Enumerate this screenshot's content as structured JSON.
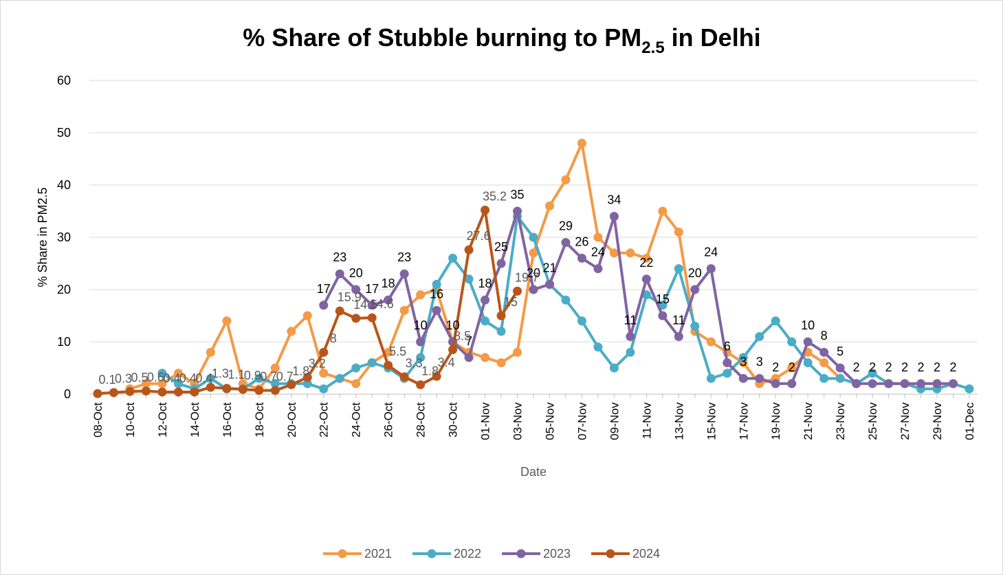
{
  "chart_data": {
    "type": "line",
    "title": {
      "text": "% Share of Stubble burning to PM",
      "subscript": "2.5",
      "suffix": " in Delhi"
    },
    "x_label": "Date",
    "y_label": "% Share in PM2.5",
    "categories": [
      "08-Oct",
      null,
      "10-Oct",
      null,
      "12-Oct",
      null,
      "14-Oct",
      null,
      "16-Oct",
      null,
      "18-Oct",
      null,
      "20-Oct",
      null,
      "22-Oct",
      null,
      "24-Oct",
      null,
      "26-Oct",
      null,
      "28-Oct",
      null,
      "30-Oct",
      null,
      "01-Nov",
      null,
      "03-Nov",
      null,
      "05-Nov",
      null,
      "07-Nov",
      null,
      "09-Nov",
      null,
      "11-Nov",
      null,
      "13-Nov",
      null,
      "15-Nov",
      null,
      "17-Nov",
      null,
      "19-Nov",
      null,
      "21-Nov",
      null,
      "23-Nov",
      null,
      "25-Nov",
      null,
      "27-Nov",
      null,
      "29-Nov",
      null,
      "01-Dec"
    ],
    "ylim": [
      0,
      60
    ],
    "yticks": [
      0,
      10,
      20,
      30,
      40,
      50,
      60
    ],
    "grid": true,
    "legend": "bottom",
    "series": [
      {
        "name": "2021",
        "color": "#f59a46",
        "data_labels": false,
        "values": [
          null,
          null,
          1,
          2,
          2,
          4,
          2,
          8,
          14,
          2,
          1,
          5,
          12,
          15,
          4,
          3,
          2,
          6,
          8,
          16,
          19,
          20,
          10,
          8,
          7,
          6,
          8,
          27,
          36,
          41,
          48,
          30,
          27,
          27,
          26,
          35,
          31,
          12,
          10,
          8,
          6,
          2,
          3,
          5,
          8,
          6,
          3,
          null,
          null,
          null,
          null,
          null,
          null,
          null,
          null
        ]
      },
      {
        "name": "2022",
        "color": "#4bacc6",
        "data_labels": false,
        "values": [
          null,
          null,
          null,
          null,
          4,
          2,
          1,
          3,
          1,
          1,
          3,
          2,
          2,
          2,
          1,
          3,
          5,
          6,
          5,
          3,
          7,
          21,
          26,
          22,
          14,
          12,
          34,
          30,
          21,
          18,
          14,
          9,
          5,
          8,
          19,
          17,
          24,
          13,
          3,
          4,
          7,
          11,
          14,
          10,
          6,
          3,
          3,
          2,
          4,
          2,
          2,
          1,
          1,
          2,
          1
        ]
      },
      {
        "name": "2023",
        "color": "#8064a2",
        "data_labels": true,
        "label_color": "#000000",
        "values": [
          null,
          null,
          null,
          null,
          null,
          null,
          null,
          null,
          null,
          null,
          null,
          null,
          null,
          null,
          17,
          23,
          20,
          17,
          18,
          23,
          10,
          16,
          10,
          7,
          18,
          25,
          35,
          20,
          21,
          29,
          26,
          24,
          34,
          11,
          22,
          15,
          11,
          20,
          24,
          6,
          3,
          3,
          2,
          2,
          10,
          8,
          5,
          2,
          2,
          2,
          2,
          2,
          2,
          2,
          null
        ]
      },
      {
        "name": "2024",
        "color": "#b8561a",
        "data_labels": true,
        "label_color": "#595959",
        "values": [
          0.1,
          0.3,
          0.5,
          0.6,
          0.4,
          0.4,
          0.4,
          1.3,
          1.1,
          0.9,
          0.7,
          0.7,
          1.8,
          3.2,
          8,
          15.9,
          14.5,
          14.6,
          5.5,
          3.3,
          1.8,
          3.4,
          8.5,
          27.6,
          35.2,
          15,
          19.7,
          null,
          null,
          null,
          null,
          null,
          null,
          null,
          null,
          null,
          null,
          null,
          null,
          null,
          null,
          null,
          null,
          null,
          null,
          null,
          null,
          null,
          null,
          null,
          null,
          null,
          null,
          null,
          null
        ]
      }
    ]
  }
}
